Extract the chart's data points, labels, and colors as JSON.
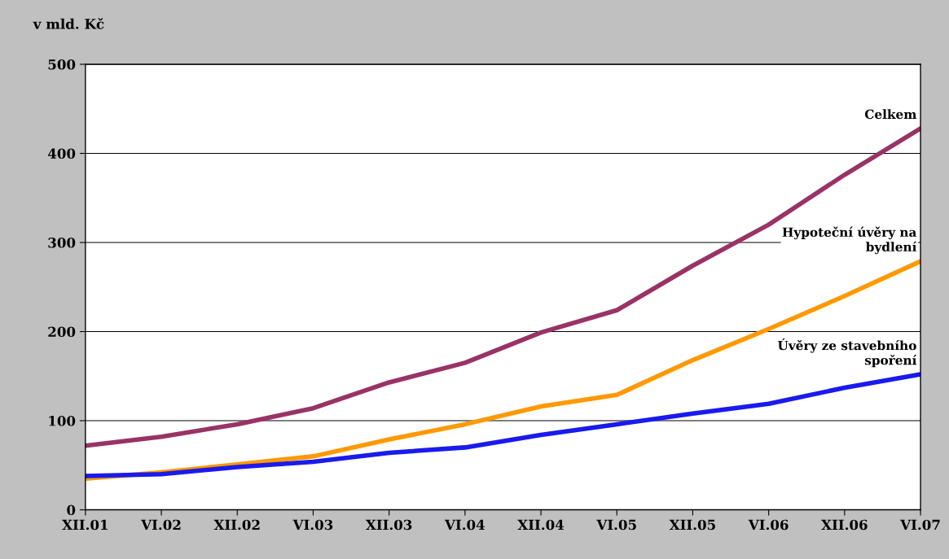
{
  "chart_data": {
    "type": "line",
    "ylabel": "v mld. Kč",
    "categories": [
      "XII.01",
      "VI.02",
      "XII.02",
      "VI.03",
      "XII.03",
      "VI.04",
      "XII.04",
      "VI.05",
      "XII.05",
      "VI.06",
      "XII.06",
      "VI.07"
    ],
    "series": [
      {
        "name": "Celkem",
        "color": "#993366",
        "values": [
          72,
          82,
          96,
          114,
          143,
          165,
          199,
          224,
          274,
          320,
          376,
          428
        ]
      },
      {
        "name": "Hypoteční úvěry na\nbydlení",
        "color": "#ff9900",
        "values": [
          35,
          42,
          51,
          60,
          79,
          96,
          116,
          129,
          168,
          203,
          240,
          279
        ]
      },
      {
        "name": "Úvěry ze stavebního\nspoření",
        "color": "#1a1aee",
        "values": [
          38,
          40,
          48,
          54,
          64,
          70,
          84,
          96,
          108,
          119,
          137,
          152
        ]
      }
    ],
    "ylim": [
      0,
      500
    ],
    "yticks": [
      0,
      100,
      200,
      300,
      400,
      500
    ],
    "grid": "y",
    "legend": false,
    "marker": "none",
    "line_style": "solid"
  }
}
